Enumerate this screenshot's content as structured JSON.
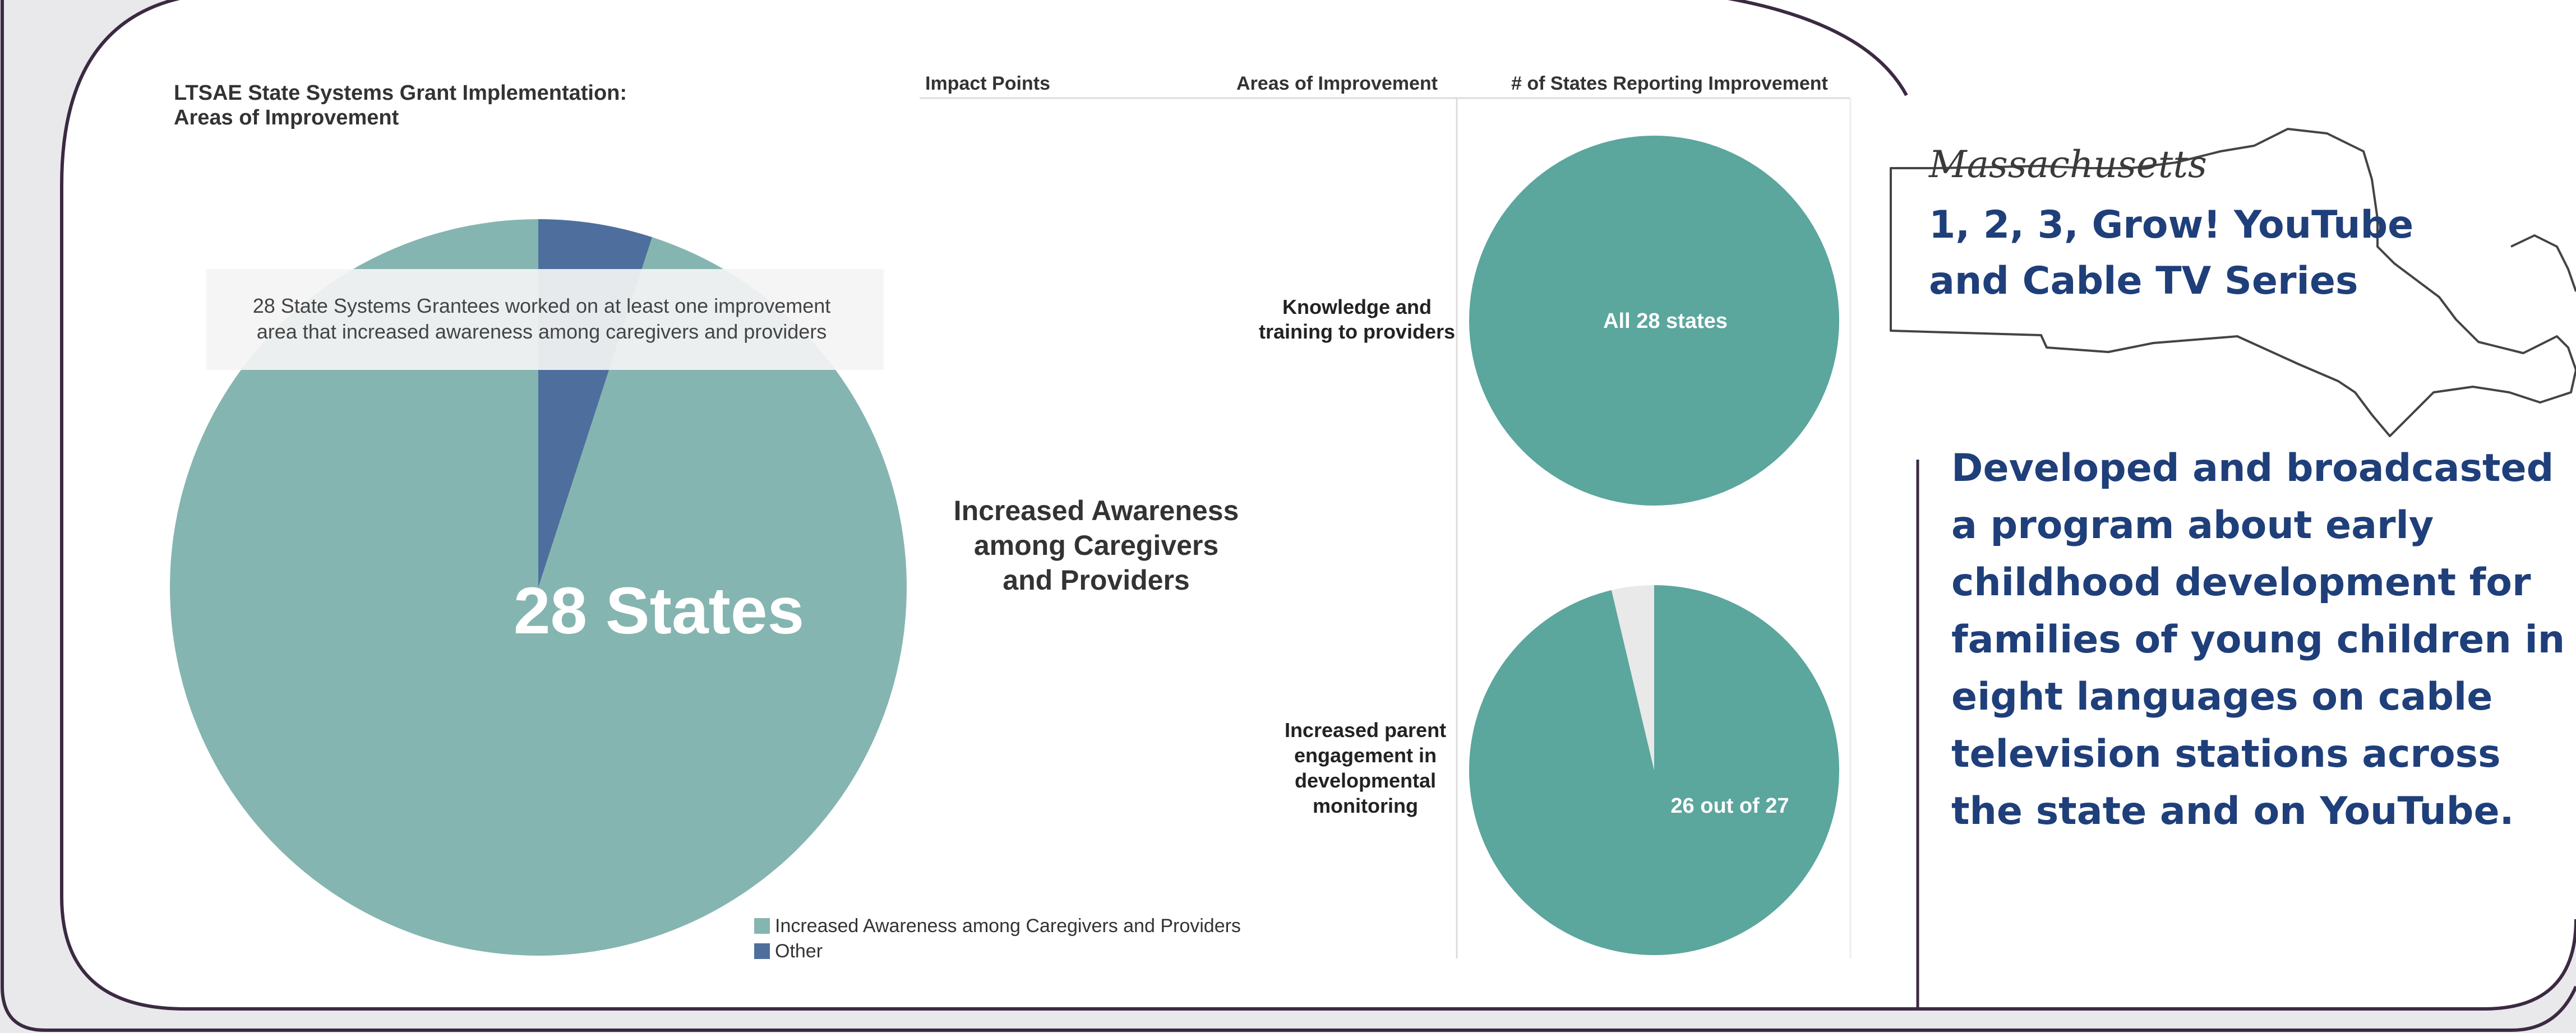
{
  "chart_data": [
    {
      "type": "pie",
      "title": "LTSAE State Systems Grant Implementation:",
      "subtitle": "Areas of Improvement",
      "slices": [
        {
          "label": "Increased Awareness among Caregivers and Providers",
          "value": 95,
          "color": "#85b5b0"
        },
        {
          "label": "Other",
          "value": 5,
          "color": "#4e6f9d"
        }
      ],
      "center_label": "28 States",
      "annotation": [
        "28 State Systems Grantees worked on at least one improvement",
        "area that increased awareness among caregivers and providers"
      ],
      "legend": [
        "Increased Awareness among Caregivers and Providers",
        "Other"
      ],
      "legend_placement": "bottom-right"
    },
    {
      "type": "table",
      "columns": [
        "Impact Points",
        "Areas of Improvement",
        "# of States Reporting Improvement"
      ],
      "impact_point": [
        "Increased Awareness",
        "among Caregivers",
        "and Providers"
      ],
      "rows": [
        {
          "area": [
            "Knowledge and",
            "training to providers"
          ],
          "pie": {
            "values": [
              28,
              0
            ],
            "label": "All 28 states",
            "colors": [
              "#5ba69d",
              "#e8e9e8"
            ]
          }
        },
        {
          "area": [
            "Increased parent",
            "engagement in",
            "developmental",
            "monitoring"
          ],
          "pie": {
            "values": [
              26,
              1
            ],
            "label": "26 out of 27",
            "colors": [
              "#5ba69d",
              "#e8e9e8"
            ]
          }
        }
      ]
    }
  ],
  "callout": {
    "state": "Massachusetts",
    "title": [
      "1, 2, 3, Grow! YouTube",
      "and Cable TV Series"
    ],
    "description": "Developed and broadcasted a program about early childhood development for families of young children in eight languages on cable television stations across the state and on YouTube."
  },
  "colors": {
    "frame": "#3b2a42",
    "teal": "#5ba69d",
    "light_teal": "#85b5b0",
    "navy": "#4e6f9d",
    "heading_blue": "#1f3f7a"
  }
}
